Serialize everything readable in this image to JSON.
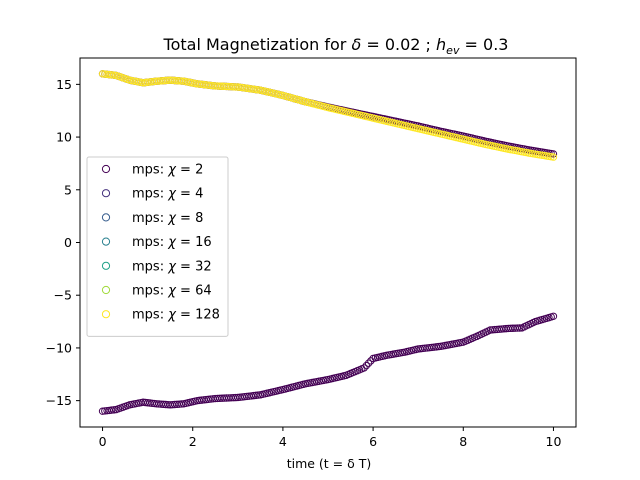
{
  "chart_data": {
    "type": "scatter",
    "title": "Total Magnetization for δ = 0.02 ; h_ev = 0.3",
    "title_parts": {
      "prefix": "Total Magnetization for ",
      "delta_symbol": "δ",
      "delta_eq": " = 0.02 ; ",
      "h_symbol": "h",
      "h_sub": "ev",
      "h_eq": " = 0.3"
    },
    "xlabel": "time (t = δ T)",
    "ylabel": "",
    "xlim": [
      -0.5,
      10.5
    ],
    "ylim": [
      -17.5,
      17.5
    ],
    "xticks": [
      0,
      2,
      4,
      6,
      8,
      10
    ],
    "yticks": [
      -15,
      -10,
      -5,
      0,
      5,
      10,
      15
    ],
    "grid": false,
    "legend_placement": "center-left",
    "marker": "hollow-circle",
    "series": [
      {
        "name": "mps: χ = 2",
        "label_prefix": "mps: ",
        "label_chi": "χ",
        "label_value": " = 2",
        "color": "#440154",
        "upper": [
          [
            0,
            16.0
          ],
          [
            0.3,
            15.85
          ],
          [
            0.6,
            15.4
          ],
          [
            0.9,
            15.15
          ],
          [
            1.2,
            15.3
          ],
          [
            1.5,
            15.4
          ],
          [
            1.8,
            15.3
          ],
          [
            2.1,
            15.05
          ],
          [
            2.5,
            14.85
          ],
          [
            3.0,
            14.75
          ],
          [
            3.5,
            14.45
          ],
          [
            4.0,
            13.95
          ],
          [
            4.5,
            13.35
          ],
          [
            5.0,
            12.85
          ],
          [
            5.5,
            12.4
          ],
          [
            6.0,
            11.95
          ],
          [
            6.5,
            11.5
          ],
          [
            7.0,
            11.05
          ],
          [
            7.5,
            10.55
          ],
          [
            8.0,
            10.1
          ],
          [
            8.5,
            9.6
          ],
          [
            9.0,
            9.15
          ],
          [
            9.5,
            8.75
          ],
          [
            10.0,
            8.4
          ]
        ],
        "lower": [
          [
            0,
            -16.0
          ],
          [
            0.3,
            -15.85
          ],
          [
            0.6,
            -15.4
          ],
          [
            0.9,
            -15.15
          ],
          [
            1.2,
            -15.3
          ],
          [
            1.5,
            -15.4
          ],
          [
            1.8,
            -15.3
          ],
          [
            2.1,
            -15.0
          ],
          [
            2.5,
            -14.8
          ],
          [
            3.0,
            -14.7
          ],
          [
            3.5,
            -14.45
          ],
          [
            4.0,
            -13.95
          ],
          [
            4.5,
            -13.4
          ],
          [
            5.0,
            -13.0
          ],
          [
            5.4,
            -12.6
          ],
          [
            5.8,
            -11.9
          ],
          [
            6.0,
            -11.0
          ],
          [
            6.3,
            -10.7
          ],
          [
            6.7,
            -10.4
          ],
          [
            7.0,
            -10.1
          ],
          [
            7.5,
            -9.85
          ],
          [
            8.0,
            -9.45
          ],
          [
            8.3,
            -8.9
          ],
          [
            8.6,
            -8.3
          ],
          [
            9.0,
            -8.15
          ],
          [
            9.3,
            -8.1
          ],
          [
            9.6,
            -7.5
          ],
          [
            10.0,
            -7.0
          ]
        ]
      },
      {
        "name": "mps: χ = 4",
        "label_prefix": "mps: ",
        "label_chi": "χ",
        "label_value": " = 4",
        "color": "#46327e"
      },
      {
        "name": "mps: χ = 8",
        "label_prefix": "mps: ",
        "label_chi": "χ",
        "label_value": " = 8",
        "color": "#365c8d"
      },
      {
        "name": "mps: χ = 16",
        "label_prefix": "mps: ",
        "label_chi": "χ",
        "label_value": " = 16",
        "color": "#277f8e"
      },
      {
        "name": "mps: χ = 32",
        "label_prefix": "mps: ",
        "label_chi": "χ",
        "label_value": " = 32",
        "color": "#1fa187"
      },
      {
        "name": "mps: χ = 64",
        "label_prefix": "mps: ",
        "label_chi": "χ",
        "label_value": " = 64",
        "color": "#a0da39"
      },
      {
        "name": "mps: χ = 128",
        "label_prefix": "mps: ",
        "label_chi": "χ",
        "label_value": " = 128",
        "color": "#fde725",
        "upper": [
          [
            0,
            16.0
          ],
          [
            0.3,
            15.85
          ],
          [
            0.6,
            15.4
          ],
          [
            0.9,
            15.15
          ],
          [
            1.2,
            15.3
          ],
          [
            1.5,
            15.4
          ],
          [
            1.8,
            15.3
          ],
          [
            2.1,
            15.05
          ],
          [
            2.5,
            14.85
          ],
          [
            3.0,
            14.75
          ],
          [
            3.5,
            14.45
          ],
          [
            4.0,
            13.95
          ],
          [
            4.5,
            13.35
          ],
          [
            5.0,
            12.8
          ],
          [
            5.5,
            12.3
          ],
          [
            6.0,
            11.8
          ],
          [
            6.5,
            11.3
          ],
          [
            7.0,
            10.8
          ],
          [
            7.5,
            10.3
          ],
          [
            8.0,
            9.8
          ],
          [
            8.5,
            9.3
          ],
          [
            9.0,
            8.85
          ],
          [
            9.5,
            8.45
          ],
          [
            10.0,
            8.1
          ]
        ]
      }
    ]
  }
}
